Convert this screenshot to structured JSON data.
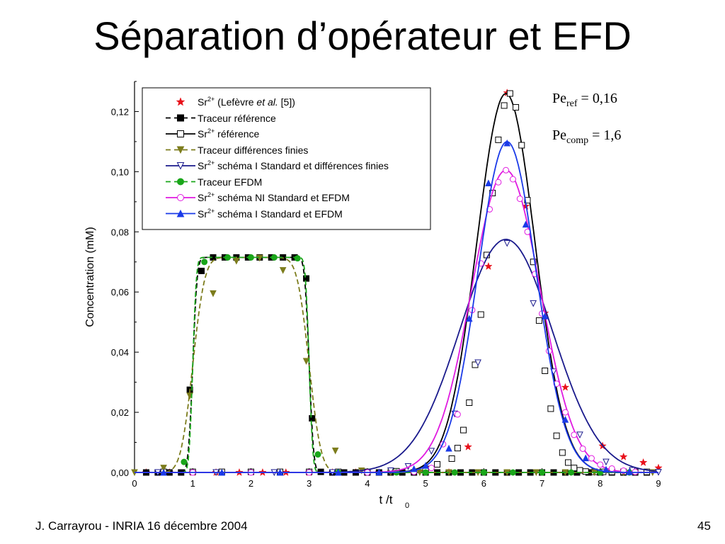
{
  "slide": {
    "title": "Séparation d’opérateur et EFD",
    "footer_left": "J. Carrayrou  -  INRIA 16 décembre 2004",
    "page_number": "45",
    "pe_ref": {
      "base": "Pe",
      "sub": "ref",
      "value": " = 0,16"
    },
    "pe_comp": {
      "base": "Pe",
      "sub": "comp",
      "value": " = 1,6"
    }
  },
  "chart_data": {
    "type": "line",
    "xlabel": "t /t",
    "xlabel_sub": "0",
    "ylabel": "Concentration (mM)",
    "xlim": [
      0,
      9
    ],
    "ylim": [
      0,
      0.13
    ],
    "xticks": [
      0,
      1,
      2,
      3,
      4,
      5,
      6,
      7,
      8,
      9
    ],
    "xtick_labels": [
      "0",
      "1",
      "2",
      "3",
      "4",
      "5",
      "6",
      "7",
      "8",
      "9"
    ],
    "yticks": [
      0,
      0.02,
      0.04,
      0.06,
      0.08,
      0.1,
      0.12
    ],
    "ytick_labels": [
      "0,00",
      "0,02",
      "0,04",
      "0,06",
      "0,08",
      "0,10",
      "0,12"
    ],
    "grid": false,
    "legend_position": "top-left",
    "series": [
      {
        "name": "Sr2+ (Lefèvre et al. [5])",
        "legend_html": "Sr<sup>2+</sup> (Lefèvre <i>et al.</i> [5])",
        "color": "#e8101a",
        "line": "none",
        "marker": "star",
        "x": [
          0.2,
          0.6,
          1.0,
          1.4,
          1.8,
          2.2,
          2.6,
          3.0,
          3.4,
          3.8,
          4.2,
          4.6,
          5.0,
          5.4,
          5.73,
          6.08,
          6.4,
          6.72,
          7.05,
          7.4,
          8.04,
          8.4,
          8.74,
          9.0
        ],
        "y": [
          0,
          0,
          0,
          0,
          0,
          0,
          0,
          0,
          0,
          0,
          0,
          0,
          0,
          0,
          0.0085,
          0.0685,
          0.1262,
          0.0885,
          0.053,
          0.0283,
          0.0088,
          0.0052,
          0.0033,
          0.0015
        ]
      },
      {
        "name": "Traceur référence",
        "legend_html": "Traceur référence",
        "color": "#000000",
        "line": "dashed",
        "marker": "square-filled",
        "curve": {
          "shape": "plateau",
          "a": 0.0715,
          "t1": 1.0,
          "t2": 3.0,
          "w": 0.085
        },
        "x": [
          0.2,
          0.4,
          0.6,
          0.8,
          0.95,
          1.15,
          1.35,
          1.55,
          1.75,
          1.95,
          2.15,
          2.35,
          2.55,
          2.75,
          2.95,
          3.05,
          3.2,
          3.4,
          3.6,
          3.8,
          4.0,
          4.2,
          4.4,
          4.6,
          4.8,
          5.0,
          5.2,
          5.4,
          5.6,
          5.8,
          6.0,
          6.2,
          6.4,
          6.6,
          6.8,
          7.0,
          7.2,
          7.4,
          7.6,
          7.8,
          8.0,
          8.2,
          8.4,
          8.6,
          8.8
        ],
        "y": [
          0,
          0,
          0,
          0,
          0.0275,
          0.067,
          0.0715,
          0.0715,
          0.0715,
          0.0715,
          0.0715,
          0.0715,
          0.0715,
          0.0715,
          0.0645,
          0.018,
          0.0002,
          0,
          0,
          0,
          0,
          0,
          0,
          0,
          0,
          0,
          0,
          0,
          0,
          0,
          0,
          0,
          0,
          0,
          0,
          0,
          0,
          0,
          0,
          0,
          0,
          0,
          0,
          0,
          0
        ]
      },
      {
        "name": "Sr2+ référence",
        "legend_html": "Sr<sup>2+</sup> référence",
        "color": "#000000",
        "line": "solid",
        "marker": "square-open",
        "curve": {
          "shape": "gauss",
          "a": 0.126,
          "mu": 6.38,
          "sigma": 0.5
        },
        "x": [
          0.5,
          1.0,
          1.5,
          2.0,
          2.5,
          3.0,
          3.5,
          4.0,
          4.5,
          5.0,
          5.2,
          5.45,
          5.55,
          5.65,
          5.75,
          5.85,
          5.95,
          6.05,
          6.15,
          6.25,
          6.35,
          6.45,
          6.55,
          6.65,
          6.75,
          6.85,
          6.95,
          7.05,
          7.15,
          7.25,
          7.35,
          7.45,
          7.55,
          7.65,
          7.75,
          7.9,
          8.05,
          8.2,
          8.4,
          8.6,
          8.8
        ],
        "y": [
          0.0002,
          0.0002,
          0.0002,
          0.0002,
          0.0002,
          0.0002,
          0.0002,
          0.0002,
          0.0004,
          0.0012,
          0.0027,
          0.0046,
          0.0081,
          0.0141,
          0.0232,
          0.0358,
          0.0525,
          0.0723,
          0.0929,
          0.1106,
          0.122,
          0.126,
          0.1214,
          0.1088,
          0.0905,
          0.07,
          0.0505,
          0.0338,
          0.0212,
          0.0122,
          0.0066,
          0.0033,
          0.0015,
          0.0007,
          0.0003,
          0.0002,
          0.0002,
          0.0002,
          0.0002,
          0.0002,
          0.0002
        ]
      },
      {
        "name": "Traceur différences finies",
        "legend_html": "Traceur différences finies",
        "color": "#7c7c1c",
        "line": "dashed",
        "marker": "triangle-down-filled",
        "curve": {
          "shape": "plateau",
          "a": 0.0715,
          "t1": 1.0,
          "t2": 3.0,
          "w": 0.23
        },
        "x": [
          0.0,
          0.5,
          0.95,
          1.35,
          1.75,
          2.15,
          2.55,
          2.95,
          3.45,
          3.9,
          4.4,
          4.9,
          5.4,
          5.9,
          6.4,
          6.9,
          7.4,
          7.9,
          8.4,
          8.9
        ],
        "y": [
          0,
          0.0015,
          0.0255,
          0.0595,
          0.0703,
          0.0713,
          0.0672,
          0.037,
          0.0072,
          0.0006,
          0,
          0,
          0,
          0,
          0,
          0,
          0,
          0,
          0,
          0
        ]
      },
      {
        "name": "Sr2+ schéma I Standard et différences finies",
        "legend_html": "Sr<sup>2+</sup> schéma I Standard et différences finies",
        "color": "#1a1a8c",
        "line": "solid",
        "marker": "triangle-down-open",
        "curve": {
          "shape": "gauss",
          "a": 0.0775,
          "mu": 6.38,
          "sigma": 0.8
        },
        "x": [
          0.4,
          1.4,
          2.4,
          3.4,
          4.4,
          4.7,
          5.1,
          5.5,
          5.9,
          6.4,
          6.85,
          7.2,
          7.65,
          8.1,
          8.55,
          9.0
        ],
        "y": [
          0,
          0,
          0,
          0,
          0.0006,
          0.002,
          0.0071,
          0.0195,
          0.0365,
          0.0762,
          0.0562,
          0.0335,
          0.0125,
          0.0035,
          0.0007,
          0.0001
        ]
      },
      {
        "name": "Traceur EFDM",
        "legend_html": "Traceur EFDM",
        "color": "#1aa61a",
        "line": "dashed",
        "marker": "circle-filled",
        "curve": {
          "shape": "plateau",
          "a": 0.0715,
          "t1": 1.0,
          "t2": 3.0,
          "w": 0.07
        },
        "x": [
          0.85,
          1.2,
          1.6,
          2.0,
          2.4,
          2.8,
          3.15,
          3.5,
          4.0,
          4.5,
          5.0,
          5.5,
          6.0,
          6.5,
          7.0,
          7.5,
          8.0,
          8.5
        ],
        "y": [
          0.0035,
          0.07,
          0.0715,
          0.0715,
          0.0715,
          0.0712,
          0.006,
          0,
          0,
          0,
          0,
          0,
          0,
          0,
          0,
          0,
          0,
          0
        ]
      },
      {
        "name": "Sr2+ schéma NI Standard et EFDM",
        "legend_html": "Sr<sup>2+</sup> schéma NI Standard et EFDM",
        "color": "#e01ae0",
        "line": "solid",
        "marker": "circle-open",
        "curve": {
          "shape": "gauss",
          "a": 0.1005,
          "mu": 6.38,
          "sigma": 0.59
        },
        "x": [
          1.0,
          2.0,
          3.0,
          4.0,
          4.8,
          5.1,
          5.3,
          5.55,
          5.8,
          5.95,
          6.1,
          6.25,
          6.38,
          6.5,
          6.62,
          6.75,
          6.88,
          7.0,
          7.12,
          7.25,
          7.4,
          7.55,
          7.7,
          7.85,
          8.0,
          8.2,
          8.4,
          8.6
        ],
        "y": [
          0,
          0,
          0,
          0,
          0.0002,
          0.0015,
          0.0094,
          0.0193,
          0.054,
          0.0695,
          0.0875,
          0.0965,
          0.1005,
          0.0975,
          0.091,
          0.08,
          0.066,
          0.0528,
          0.0404,
          0.0295,
          0.02,
          0.0125,
          0.0079,
          0.0047,
          0.0026,
          0.0013,
          0.0006,
          0.0002
        ]
      },
      {
        "name": "Sr2+ schéma I Standard et EFDM",
        "legend_html": "Sr<sup>2+</sup> schéma I Standard et EFDM",
        "color": "#1a3ae8",
        "line": "solid",
        "marker": "triangle-up-filled",
        "curve": {
          "shape": "gauss",
          "a": 0.11,
          "mu": 6.4,
          "sigma": 0.5
        },
        "x": [
          0.5,
          1.5,
          2.5,
          3.5,
          4.2,
          4.8,
          5.0,
          5.4,
          5.75,
          6.08,
          6.4,
          6.72,
          7.05,
          7.4,
          7.75,
          8.1,
          8.5
        ],
        "y": [
          0,
          0,
          0,
          0,
          0.0001,
          0.0012,
          0.0023,
          0.008,
          0.0512,
          0.0962,
          0.1095,
          0.0825,
          0.052,
          0.0176,
          0.0048,
          0.001,
          0.0002
        ]
      }
    ]
  }
}
